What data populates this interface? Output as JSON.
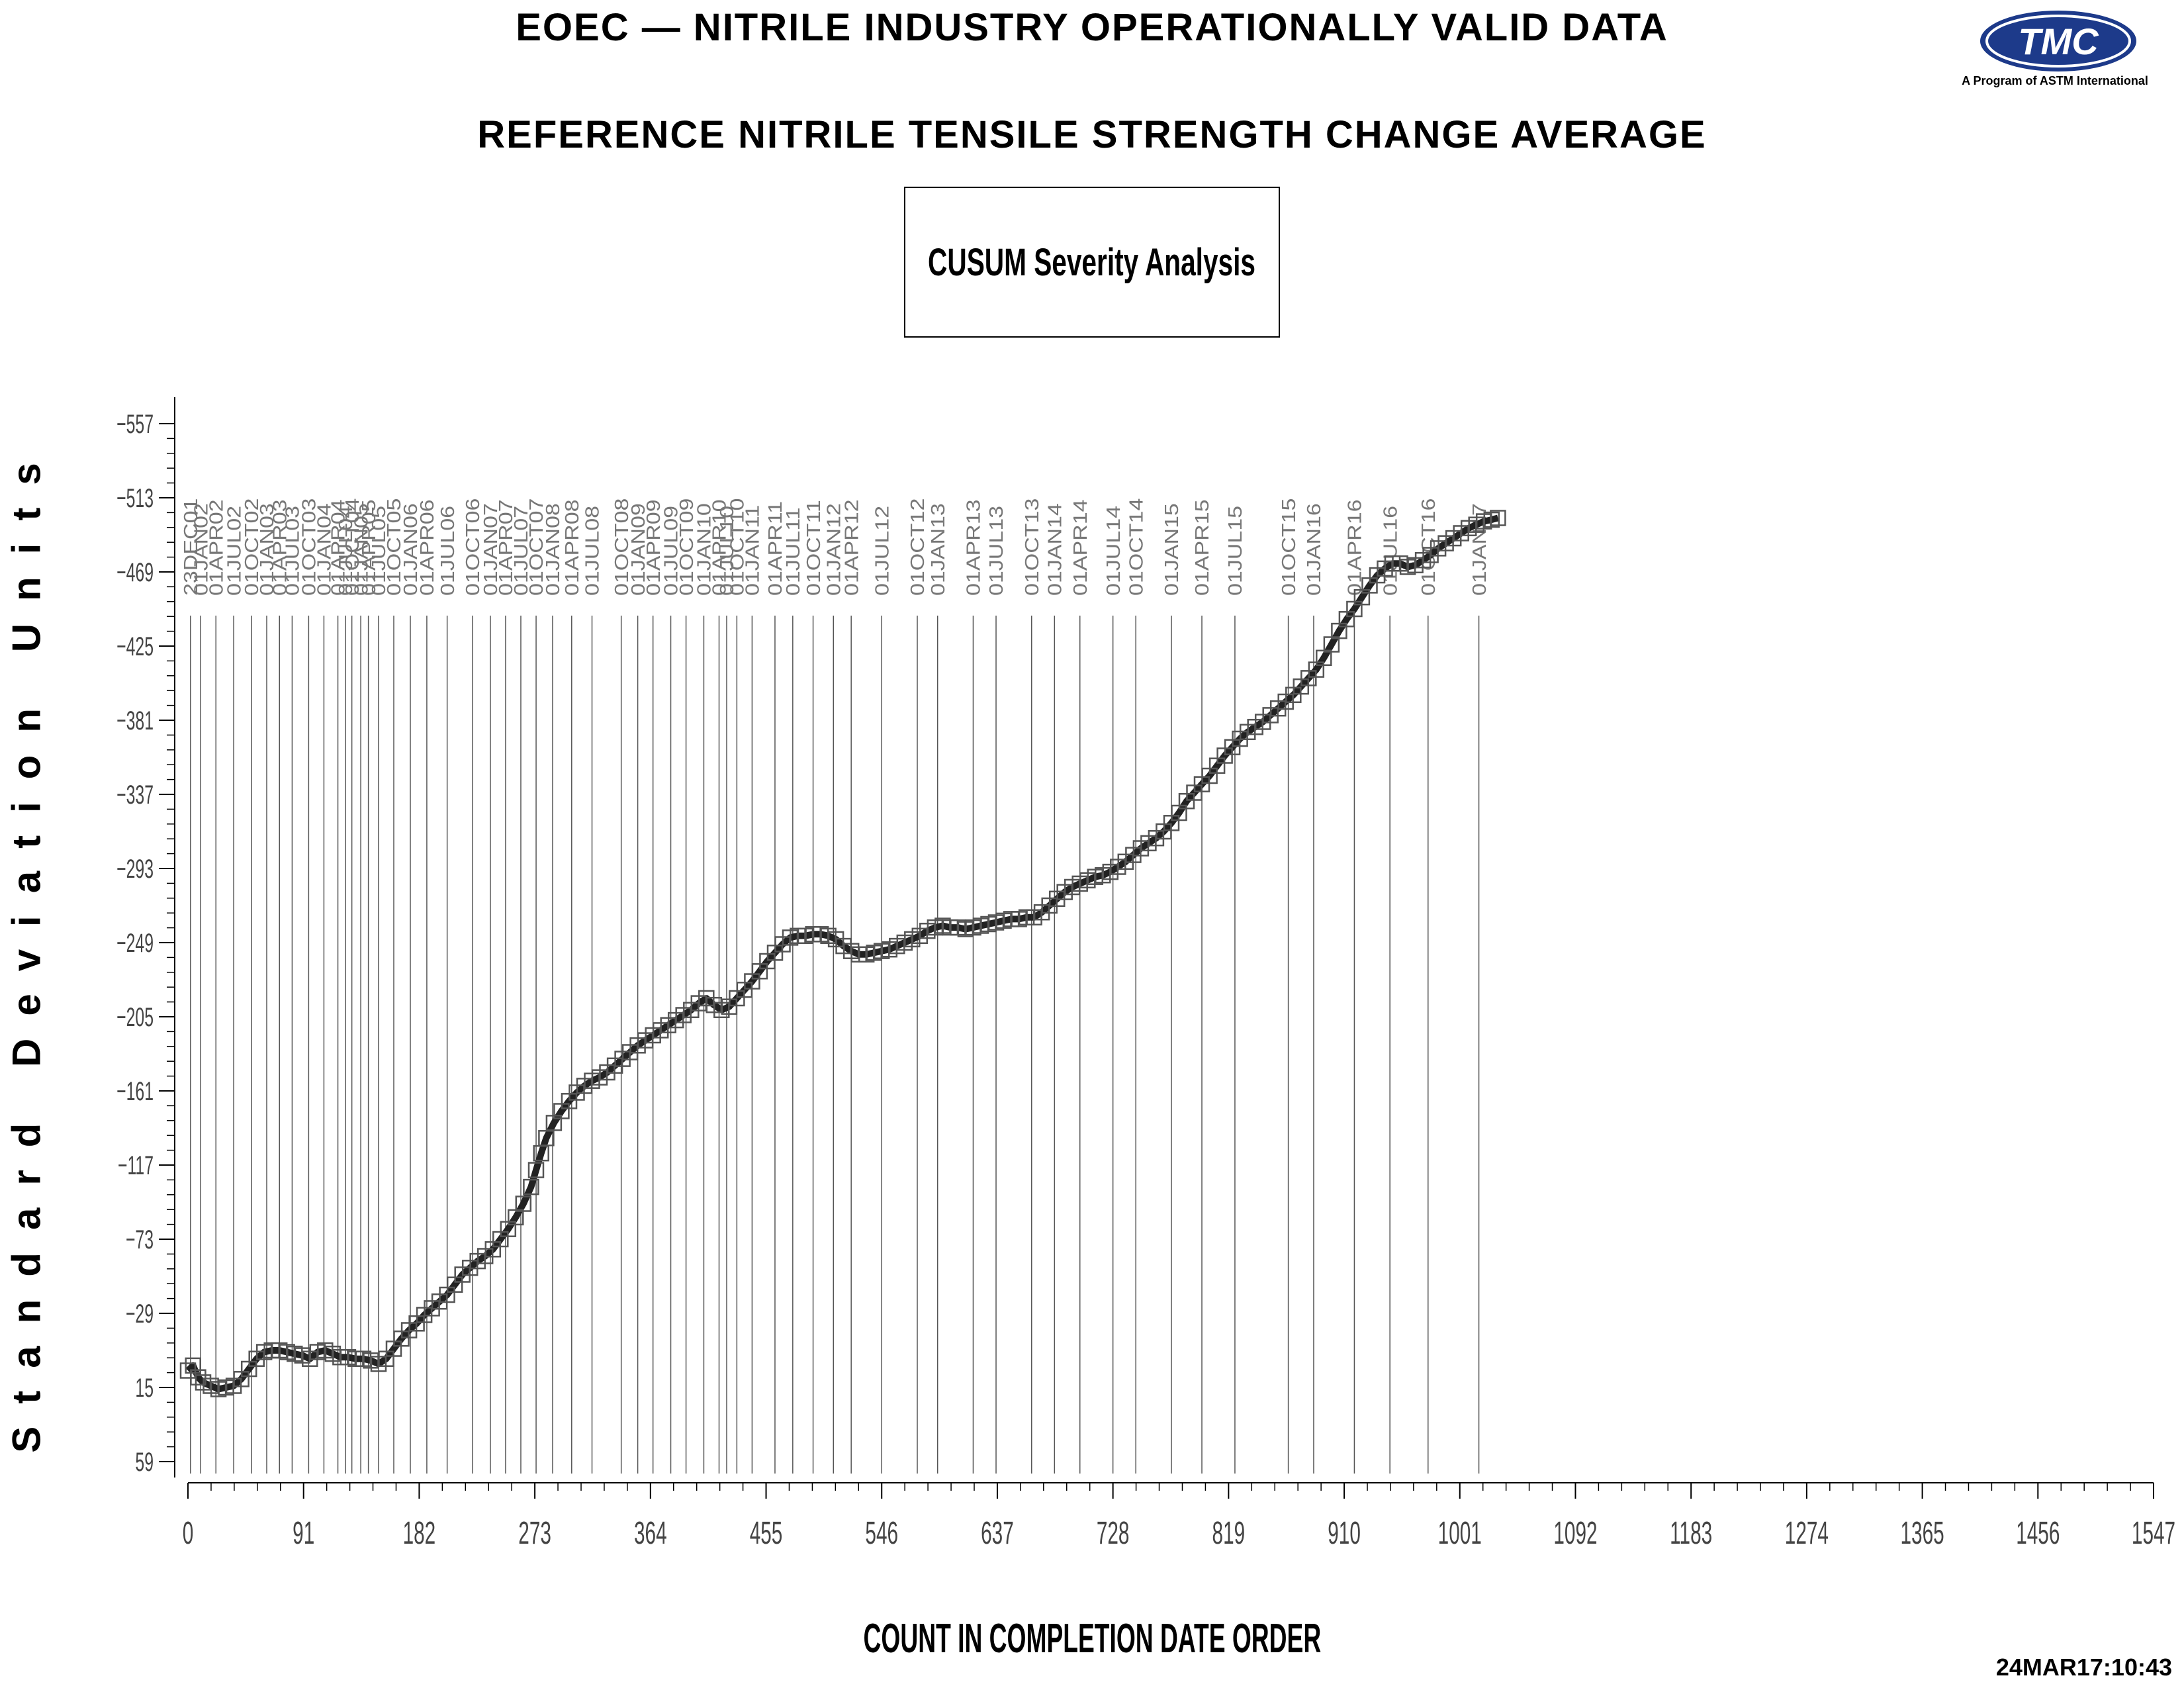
{
  "header": {
    "title": "EOEC — NITRILE INDUSTRY OPERATIONALLY VALID DATA",
    "subtitle": "REFERENCE NITRILE TENSILE STRENGTH CHANGE AVERAGE",
    "box_title": "CUSUM Severity Analysis",
    "logo_text": "TMC",
    "logo_caption": "A Program of ASTM International",
    "timestamp": "24MAR17:10:43"
  },
  "chart_data": {
    "type": "line",
    "title": "CUSUM Severity Analysis",
    "xlabel": "COUNT IN COMPLETION DATE ORDER",
    "ylabel": "Standard Deviation Units",
    "xlim": [
      0,
      1547
    ],
    "ylim": [
      59,
      -557
    ],
    "y_axis_reversed": true,
    "x_ticks": [
      0,
      91,
      182,
      273,
      364,
      455,
      546,
      637,
      728,
      819,
      910,
      1001,
      1092,
      1183,
      1274,
      1365,
      1456,
      1547
    ],
    "y_ticks": [
      -557,
      -513,
      -469,
      -425,
      -381,
      -337,
      -293,
      -249,
      -205,
      -161,
      -117,
      -73,
      -29,
      15,
      59
    ],
    "marker": "square",
    "grid": false,
    "legend": "none",
    "reference_lines": [
      {
        "x": 2,
        "label": "23DEC01"
      },
      {
        "x": 10,
        "label": "01JAN02"
      },
      {
        "x": 22,
        "label": "01APR02"
      },
      {
        "x": 36,
        "label": "01JUL02"
      },
      {
        "x": 50,
        "label": "01OCT02"
      },
      {
        "x": 62,
        "label": "01JAN03"
      },
      {
        "x": 72,
        "label": "01APR03"
      },
      {
        "x": 82,
        "label": "01JUL03"
      },
      {
        "x": 95,
        "label": "01OCT03"
      },
      {
        "x": 107,
        "label": "01JAN04"
      },
      {
        "x": 118,
        "label": "01APR04"
      },
      {
        "x": 124,
        "label": "01JUL04"
      },
      {
        "x": 129,
        "label": "01OCT04"
      },
      {
        "x": 136,
        "label": "01JAN05"
      },
      {
        "x": 142,
        "label": "01APR05"
      },
      {
        "x": 150,
        "label": "01JUL05"
      },
      {
        "x": 162,
        "label": "01OCT05"
      },
      {
        "x": 175,
        "label": "01JAN06"
      },
      {
        "x": 188,
        "label": "01APR06"
      },
      {
        "x": 204,
        "label": "01JUL06"
      },
      {
        "x": 224,
        "label": "01OCT06"
      },
      {
        "x": 238,
        "label": "01JAN07"
      },
      {
        "x": 250,
        "label": "01APR07"
      },
      {
        "x": 262,
        "label": "01JUL07"
      },
      {
        "x": 274,
        "label": "01OCT07"
      },
      {
        "x": 287,
        "label": "01JAN08"
      },
      {
        "x": 302,
        "label": "01APR08"
      },
      {
        "x": 318,
        "label": "01JUL08"
      },
      {
        "x": 341,
        "label": "01OCT08"
      },
      {
        "x": 354,
        "label": "01JAN09"
      },
      {
        "x": 366,
        "label": "01APR09"
      },
      {
        "x": 380,
        "label": "01JUL09"
      },
      {
        "x": 392,
        "label": "01OCT09"
      },
      {
        "x": 406,
        "label": "01JAN10"
      },
      {
        "x": 418,
        "label": "01APR10"
      },
      {
        "x": 424,
        "label": "01JUL10"
      },
      {
        "x": 432,
        "label": "01OCT10"
      },
      {
        "x": 444,
        "label": "01JAN11"
      },
      {
        "x": 462,
        "label": "01APR11"
      },
      {
        "x": 476,
        "label": "01JUL11"
      },
      {
        "x": 492,
        "label": "01OCT11"
      },
      {
        "x": 508,
        "label": "01JAN12"
      },
      {
        "x": 522,
        "label": "01APR12"
      },
      {
        "x": 546,
        "label": "01JUL12"
      },
      {
        "x": 574,
        "label": "01OCT12"
      },
      {
        "x": 590,
        "label": "01JAN13"
      },
      {
        "x": 618,
        "label": "01APR13"
      },
      {
        "x": 636,
        "label": "01JUL13"
      },
      {
        "x": 664,
        "label": "01OCT13"
      },
      {
        "x": 682,
        "label": "01JAN14"
      },
      {
        "x": 702,
        "label": "01APR14"
      },
      {
        "x": 728,
        "label": "01JUL14"
      },
      {
        "x": 746,
        "label": "01OCT14"
      },
      {
        "x": 774,
        "label": "01JAN15"
      },
      {
        "x": 798,
        "label": "01APR15"
      },
      {
        "x": 824,
        "label": "01JUL15"
      },
      {
        "x": 866,
        "label": "01OCT15"
      },
      {
        "x": 886,
        "label": "01JAN16"
      },
      {
        "x": 918,
        "label": "01APR16"
      },
      {
        "x": 946,
        "label": "01JUL16"
      },
      {
        "x": 976,
        "label": "01OCT16"
      },
      {
        "x": 1016,
        "label": "01JAN17"
      }
    ],
    "series": [
      {
        "points": [
          [
            0,
            5
          ],
          [
            4,
            2
          ],
          [
            8,
            9
          ],
          [
            12,
            12
          ],
          [
            18,
            14
          ],
          [
            24,
            16
          ],
          [
            30,
            15
          ],
          [
            36,
            14
          ],
          [
            42,
            10
          ],
          [
            48,
            4
          ],
          [
            54,
            -2
          ],
          [
            60,
            -6
          ],
          [
            66,
            -7
          ],
          [
            72,
            -7
          ],
          [
            78,
            -6
          ],
          [
            84,
            -5
          ],
          [
            90,
            -4
          ],
          [
            96,
            -2
          ],
          [
            102,
            -6
          ],
          [
            108,
            -7
          ],
          [
            114,
            -5
          ],
          [
            120,
            -3
          ],
          [
            126,
            -3
          ],
          [
            132,
            -2
          ],
          [
            138,
            -2
          ],
          [
            144,
            -1
          ],
          [
            150,
            1
          ],
          [
            156,
            -2
          ],
          [
            162,
            -8
          ],
          [
            168,
            -14
          ],
          [
            174,
            -19
          ],
          [
            180,
            -23
          ],
          [
            186,
            -28
          ],
          [
            192,
            -32
          ],
          [
            198,
            -36
          ],
          [
            204,
            -40
          ],
          [
            210,
            -46
          ],
          [
            216,
            -52
          ],
          [
            222,
            -56
          ],
          [
            228,
            -60
          ],
          [
            234,
            -63
          ],
          [
            240,
            -67
          ],
          [
            246,
            -73
          ],
          [
            252,
            -79
          ],
          [
            258,
            -86
          ],
          [
            264,
            -94
          ],
          [
            270,
            -104
          ],
          [
            274,
            -114
          ],
          [
            278,
            -124
          ],
          [
            282,
            -133
          ],
          [
            288,
            -142
          ],
          [
            294,
            -149
          ],
          [
            300,
            -155
          ],
          [
            306,
            -160
          ],
          [
            312,
            -164
          ],
          [
            318,
            -167
          ],
          [
            324,
            -169
          ],
          [
            330,
            -172
          ],
          [
            336,
            -176
          ],
          [
            342,
            -180
          ],
          [
            348,
            -184
          ],
          [
            354,
            -188
          ],
          [
            360,
            -191
          ],
          [
            366,
            -194
          ],
          [
            372,
            -197
          ],
          [
            378,
            -200
          ],
          [
            384,
            -203
          ],
          [
            390,
            -206
          ],
          [
            396,
            -209
          ],
          [
            402,
            -213
          ],
          [
            408,
            -216
          ],
          [
            414,
            -212
          ],
          [
            420,
            -209
          ],
          [
            426,
            -211
          ],
          [
            432,
            -216
          ],
          [
            438,
            -221
          ],
          [
            444,
            -226
          ],
          [
            450,
            -232
          ],
          [
            456,
            -238
          ],
          [
            462,
            -243
          ],
          [
            468,
            -248
          ],
          [
            474,
            -252
          ],
          [
            480,
            -253
          ],
          [
            486,
            -253
          ],
          [
            492,
            -254
          ],
          [
            498,
            -254
          ],
          [
            504,
            -253
          ],
          [
            510,
            -251
          ],
          [
            516,
            -247
          ],
          [
            522,
            -244
          ],
          [
            528,
            -242
          ],
          [
            534,
            -242
          ],
          [
            540,
            -243
          ],
          [
            546,
            -244
          ],
          [
            552,
            -245
          ],
          [
            558,
            -247
          ],
          [
            564,
            -249
          ],
          [
            570,
            -251
          ],
          [
            576,
            -253
          ],
          [
            582,
            -256
          ],
          [
            588,
            -258
          ],
          [
            594,
            -259
          ],
          [
            600,
            -258
          ],
          [
            606,
            -258
          ],
          [
            612,
            -257
          ],
          [
            618,
            -258
          ],
          [
            624,
            -259
          ],
          [
            630,
            -260
          ],
          [
            636,
            -261
          ],
          [
            642,
            -262
          ],
          [
            648,
            -263
          ],
          [
            654,
            -263
          ],
          [
            660,
            -264
          ],
          [
            666,
            -264
          ],
          [
            672,
            -267
          ],
          [
            678,
            -271
          ],
          [
            684,
            -275
          ],
          [
            690,
            -279
          ],
          [
            696,
            -282
          ],
          [
            702,
            -284
          ],
          [
            708,
            -286
          ],
          [
            714,
            -288
          ],
          [
            720,
            -289
          ],
          [
            726,
            -291
          ],
          [
            732,
            -294
          ],
          [
            738,
            -297
          ],
          [
            744,
            -301
          ],
          [
            750,
            -305
          ],
          [
            756,
            -308
          ],
          [
            762,
            -311
          ],
          [
            768,
            -315
          ],
          [
            774,
            -320
          ],
          [
            780,
            -326
          ],
          [
            786,
            -333
          ],
          [
            792,
            -338
          ],
          [
            798,
            -343
          ],
          [
            804,
            -348
          ],
          [
            810,
            -354
          ],
          [
            816,
            -360
          ],
          [
            822,
            -365
          ],
          [
            828,
            -370
          ],
          [
            834,
            -374
          ],
          [
            840,
            -377
          ],
          [
            846,
            -380
          ],
          [
            852,
            -384
          ],
          [
            858,
            -388
          ],
          [
            864,
            -392
          ],
          [
            870,
            -396
          ],
          [
            876,
            -401
          ],
          [
            882,
            -406
          ],
          [
            888,
            -411
          ],
          [
            894,
            -418
          ],
          [
            900,
            -426
          ],
          [
            906,
            -434
          ],
          [
            912,
            -441
          ],
          [
            918,
            -447
          ],
          [
            924,
            -454
          ],
          [
            930,
            -461
          ],
          [
            936,
            -467
          ],
          [
            942,
            -471
          ],
          [
            948,
            -474
          ],
          [
            954,
            -474
          ],
          [
            960,
            -472
          ],
          [
            966,
            -473
          ],
          [
            972,
            -476
          ],
          [
            978,
            -479
          ],
          [
            984,
            -483
          ],
          [
            990,
            -486
          ],
          [
            996,
            -489
          ],
          [
            1002,
            -492
          ],
          [
            1008,
            -495
          ],
          [
            1014,
            -497
          ],
          [
            1020,
            -499
          ],
          [
            1026,
            -500
          ],
          [
            1031,
            -501
          ]
        ]
      }
    ]
  }
}
